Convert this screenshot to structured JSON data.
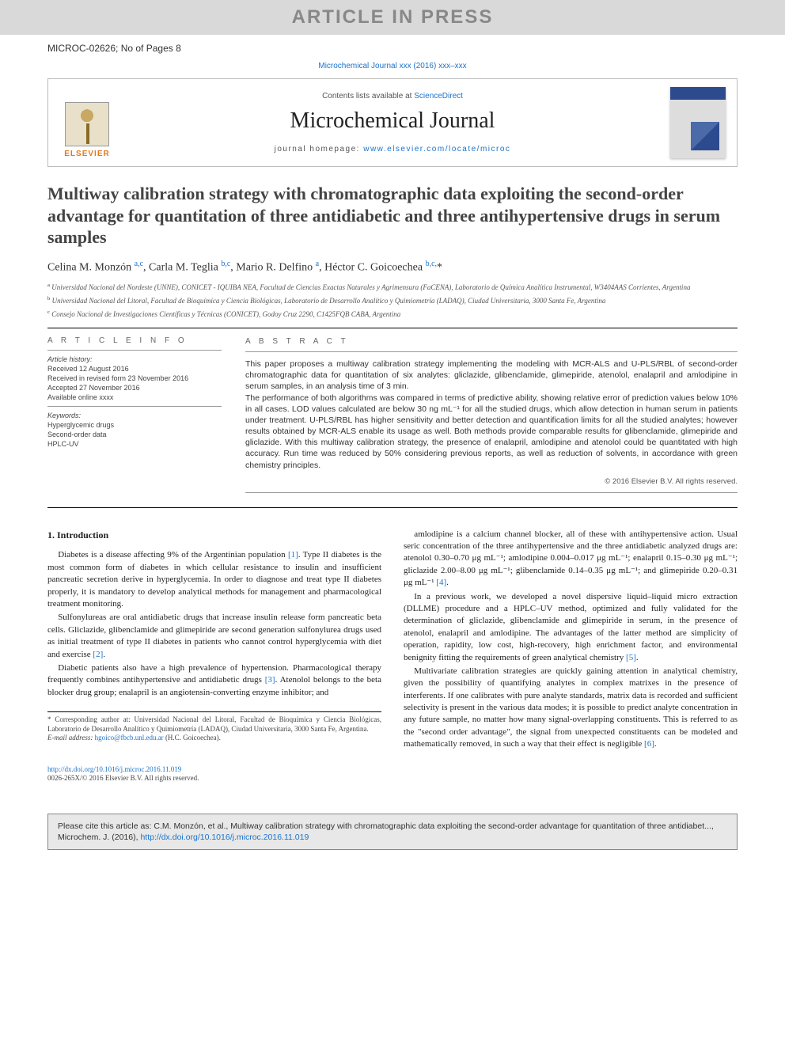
{
  "watermark": "ARTICLE IN PRESS",
  "article_id_line": "MICROC-02626; No of Pages 8",
  "journal_ref": "Microchemical Journal xxx (2016) xxx–xxx",
  "masthead": {
    "contents_prefix": "Contents lists available at ",
    "contents_link": "ScienceDirect",
    "journal_title": "Microchemical Journal",
    "homepage_prefix": "journal homepage: ",
    "homepage_url": "www.elsevier.com/locate/microc",
    "publisher_wordmark": "ELSEVIER"
  },
  "title": "Multiway calibration strategy with chromatographic data exploiting the second-order advantage for quantitation of three antidiabetic and three antihypertensive drugs in serum samples",
  "authors_html": "Celina M. Monzón <span class='aff'>a,c</span>, Carla M. Teglia <span class='aff'>b,c</span>, Mario R. Delfino <span class='aff'>a</span>, Héctor C. Goicoechea <span class='aff'>b,c,</span>*",
  "affiliations": [
    "a Universidad Nacional del Nordeste (UNNE), CONICET - IQUIBA NEA, Facultad de Ciencias Exactas Naturales y Agrimensura (FaCENA), Laboratorio de Química Analítica Instrumental, W3404AAS Corrientes, Argentina",
    "b Universidad Nacional del Litoral, Facultad de Bioquímica y Ciencia Biológicas, Laboratorio de Desarrollo Analítico y Quimiometría (LADAQ), Ciudad Universitaria, 3000 Santa Fe, Argentina",
    "c Consejo Nacional de Investigaciones Científicas y Técnicas (CONICET), Godoy Cruz 2290, C1425FQB CABA, Argentina"
  ],
  "article_info": {
    "heading": "A R T I C L E   I N F O",
    "history_label": "Article history:",
    "received": "Received 12 August 2016",
    "revised": "Received in revised form 23 November 2016",
    "accepted": "Accepted 27 November 2016",
    "online": "Available online xxxx",
    "keywords_label": "Keywords:",
    "keywords": [
      "Hyperglycemic drugs",
      "Second-order data",
      "HPLC-UV"
    ]
  },
  "abstract": {
    "heading": "A B S T R A C T",
    "p1": "This paper proposes a multiway calibration strategy implementing the modeling with MCR-ALS and U-PLS/RBL of second-order chromatographic data for quantitation of six analytes: gliclazide, glibenclamide, glimepiride, atenolol, enalapril and amlodipine in serum samples, in an analysis time of 3 min.",
    "p2": "The performance of both algorithms was compared in terms of predictive ability, showing relative error of prediction values below 10% in all cases. LOD values calculated are below 30 ng mL⁻¹ for all the studied drugs, which allow detection in human serum in patients under treatment. U-PLS/RBL has higher sensitivity and better detection and quantification limits for all the studied analytes; however results obtained by MCR-ALS enable its usage as well. Both methods provide comparable results for glibenclamide, glimepiride and gliclazide. With this multiway calibration strategy, the presence of enalapril, amlodipine and atenolol could be quantitated with high accuracy. Run time was reduced by 50% considering previous reports, as well as reduction of solvents, in accordance with green chemistry principles.",
    "copyright": "© 2016 Elsevier B.V. All rights reserved."
  },
  "intro": {
    "heading": "1. Introduction",
    "p1": "Diabetes is a disease affecting 9% of the Argentinian population [1]. Type II diabetes is the most common form of diabetes in which cellular resistance to insulin and insufficient pancreatic secretion derive in hyperglycemia. In order to diagnose and treat type II diabetes properly, it is mandatory to develop analytical methods for management and pharmacological treatment monitoring.",
    "p2": "Sulfonylureas are oral antidiabetic drugs that increase insulin release form pancreatic beta cells. Gliclazide, glibenclamide and glimepiride are second generation sulfonylurea drugs used as initial treatment of type II diabetes in patients who cannot control hyperglycemia with diet and exercise [2].",
    "p3": "Diabetic patients also have a high prevalence of hypertension. Pharmacological therapy frequently combines antihypertensive and antidiabetic drugs [3]. Atenolol belongs to the beta blocker drug group; enalapril is an angiotensin-converting enzyme inhibitor; and",
    "p4": "amlodipine is a calcium channel blocker, all of these with antihypertensive action. Usual seric concentration of the three antihypertensive and the three antidiabetic analyzed drugs are: atenolol 0.30–0.70 μg mL⁻¹; amlodipine 0.004–0.017 μg mL⁻¹; enalapril 0.15–0.30 μg mL⁻¹; gliclazide 2.00–8.00 μg mL⁻¹; glibenclamide 0.14–0.35 μg mL⁻¹; and glimepiride 0.20–0.31 μg mL⁻¹ [4].",
    "p5": "In a previous work, we developed a novel dispersive liquid–liquid micro extraction (DLLME) procedure and a HPLC–UV method, optimized and fully validated for the determination of gliclazide, glibenclamide and glimepiride in serum, in the presence of atenolol, enalapril and amlodipine. The advantages of the latter method are simplicity of operation, rapidity, low cost, high-recovery, high enrichment factor, and environmental benignity fitting the requirements of green analytical chemistry [5].",
    "p6": "Multivariate calibration strategies are quickly gaining attention in analytical chemistry, given the possibility of quantifying analytes in complex matrixes in the presence of interferents. If one calibrates with pure analyte standards, matrix data is recorded and sufficient selectivity is present in the various data modes; it is possible to predict analyte concentration in any future sample, no matter how many signal-overlapping constituents. This is referred to as the \"second order advantage\", the signal from unexpected constituents can be modeled and mathematically removed, in such a way that their effect is negligible [6]."
  },
  "footnote": {
    "corr": "* Corresponding author at: Universidad Nacional del Litoral, Facultad de Bioquímica y Ciencia Biológicas, Laboratorio de Desarrollo Analítico y Quimiometría (LADAQ), Ciudad Universitaria, 3000 Santa Fe, Argentina.",
    "email_label": "E-mail address: ",
    "email": "hgoico@fbcb.unl.edu.ar",
    "email_who": " (H.C. Goicoechea)."
  },
  "doi": {
    "url": "http://dx.doi.org/10.1016/j.microc.2016.11.019",
    "issn": "0026-265X/© 2016 Elsevier B.V. All rights reserved."
  },
  "cite_box": {
    "text_prefix": "Please cite this article as: C.M. Monzón, et al., Multiway calibration strategy with chromatographic data exploiting the second-order advantage for quantitation of three antidiabet..., Microchem. J. (2016), ",
    "url": "http://dx.doi.org/10.1016/j.microc.2016.11.019"
  },
  "colors": {
    "link": "#1a73cc",
    "watermark_bg": "#d9d9d9",
    "watermark_fg": "#888888",
    "elsevier_orange": "#e67817",
    "cover_blue": "#2d4a8f",
    "citebox_bg": "#e8e8e8",
    "text": "#333333"
  }
}
